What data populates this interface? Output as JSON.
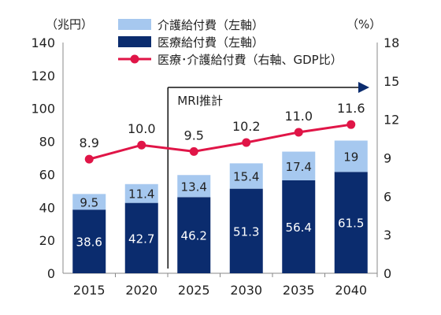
{
  "chart_data": {
    "type": "bar",
    "categories": [
      "2015",
      "2020",
      "2025",
      "2030",
      "2035",
      "2040"
    ],
    "series": [
      {
        "name": "介護給付費（左軸）",
        "values": [
          9.5,
          11.4,
          13.4,
          15.4,
          17.4,
          19.0
        ],
        "color": "#a6c8ef",
        "axis": "left",
        "stacked": true
      },
      {
        "name": "医療給付費（左軸）",
        "values": [
          38.6,
          42.7,
          46.2,
          51.3,
          56.4,
          61.5
        ],
        "color": "#0b2c6e",
        "axis": "left",
        "stacked": true
      },
      {
        "name": "医療･介護給付費（右軸、GDP比）",
        "values": [
          8.9,
          10.0,
          9.5,
          10.2,
          11.0,
          11.6
        ],
        "color": "#e01547",
        "axis": "right",
        "type": "line"
      }
    ],
    "y_left": {
      "label": "（兆円）",
      "ticks": [
        0,
        20,
        40,
        60,
        80,
        100,
        120,
        140
      ],
      "range": [
        0,
        140
      ]
    },
    "y_right": {
      "label": "（%）",
      "ticks": [
        0,
        3,
        6,
        9,
        12,
        15,
        18
      ],
      "range": [
        0,
        18
      ]
    },
    "annotation": {
      "text": "MRI推計",
      "from_category": "2025"
    },
    "grid": false,
    "legend_position": "top"
  }
}
